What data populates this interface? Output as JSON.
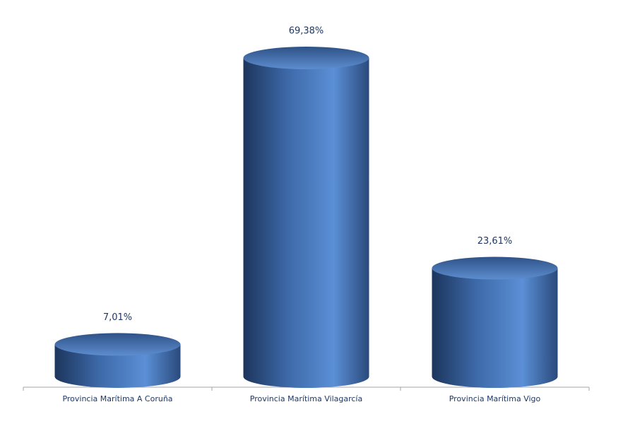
{
  "chart_data": {
    "type": "cylinder",
    "categories": [
      "Provincia Marítima A Coruña",
      "Provincia Marítima Vilagarcía",
      "Provincia Marítima Vigo"
    ],
    "values": [
      7.01,
      69.38,
      23.61
    ],
    "value_labels": [
      "7,01%",
      "69,38%",
      "23,61%"
    ],
    "color": "#4a7ab8"
  }
}
